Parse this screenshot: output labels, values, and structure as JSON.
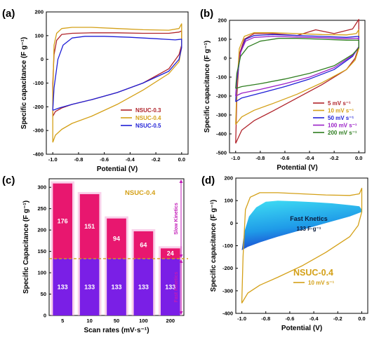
{
  "colors": {
    "dark_red": "#b0232a",
    "gold": "#d4a017",
    "blue": "#1f1fd6",
    "purple": "#9a1fc7",
    "green": "#2e7d1f",
    "pink_bar": "#e8176f",
    "violet_bar": "#7a1fe6",
    "kinetic_label": "#c21bb8",
    "fill_cyan": "#38d8f0",
    "fill_blue": "#1a5ad8"
  },
  "chart_data": [
    {
      "panel": "(a)",
      "type": "line",
      "xlabel": "Potential (V)",
      "ylabel": "Specific capacitance (F g⁻¹)",
      "xlim": [
        -1.05,
        0.05
      ],
      "ylim": [
        -400,
        200
      ],
      "xticks": [
        "-1.0",
        "-0.8",
        "-0.6",
        "-0.4",
        "-0.2",
        "0.0"
      ],
      "xtick_values": [
        -1.0,
        -0.8,
        -0.6,
        -0.4,
        -0.2,
        0.0
      ],
      "yticks": [
        "-400",
        "-300",
        "-200",
        "-100",
        "0",
        "100",
        "200"
      ],
      "ytick_values": [
        -400,
        -300,
        -200,
        -100,
        0,
        100,
        200
      ],
      "legend_position": "lower-right",
      "series": [
        {
          "name": "NSUC-0.3",
          "color": "#b0232a",
          "x": [
            -1.0,
            -1.0,
            -0.99,
            -0.97,
            -0.93,
            -0.85,
            -0.7,
            -0.5,
            -0.3,
            -0.1,
            -0.02,
            0.0,
            0.0,
            -0.02,
            -0.1,
            -0.3,
            -0.5,
            -0.7,
            -0.85,
            -0.93,
            -0.98,
            -1.0
          ],
          "y": [
            -240,
            -100,
            20,
            80,
            105,
            110,
            112,
            112,
            110,
            110,
            115,
            120,
            60,
            20,
            -40,
            -100,
            -140,
            -170,
            -190,
            -205,
            -220,
            -240
          ]
        },
        {
          "name": "NSUC-0.4",
          "color": "#d4a017",
          "x": [
            -1.0,
            -1.0,
            -0.99,
            -0.97,
            -0.93,
            -0.85,
            -0.7,
            -0.5,
            -0.3,
            -0.1,
            -0.02,
            0.0,
            0.0,
            -0.02,
            -0.1,
            -0.3,
            -0.5,
            -0.7,
            -0.85,
            -0.93,
            -0.98,
            -1.0
          ],
          "y": [
            -350,
            -150,
            60,
            110,
            130,
            135,
            135,
            130,
            125,
            123,
            130,
            150,
            50,
            -10,
            -60,
            -130,
            -190,
            -240,
            -270,
            -295,
            -320,
            -350
          ]
        },
        {
          "name": "NSUC-0.5",
          "color": "#1f1fd6",
          "x": [
            -1.0,
            -0.99,
            -0.96,
            -0.92,
            -0.85,
            -0.75,
            -0.6,
            -0.4,
            -0.2,
            -0.05,
            0.0,
            0.0,
            -0.02,
            -0.1,
            -0.3,
            -0.5,
            -0.7,
            -0.85,
            -0.95,
            -1.0
          ],
          "y": [
            -215,
            -120,
            0,
            60,
            90,
            97,
            97,
            93,
            87,
            82,
            85,
            50,
            0,
            -50,
            -100,
            -140,
            -170,
            -190,
            -205,
            -215
          ]
        }
      ]
    },
    {
      "panel": "(b)",
      "type": "line",
      "xlabel": "Potential (V)",
      "ylabel": "Specific capacitance (F g⁻¹)",
      "xlim": [
        -1.05,
        0.05
      ],
      "ylim": [
        -500,
        200
      ],
      "xticks": [
        "-1.0",
        "-0.8",
        "-0.6",
        "-0.4",
        "-0.2",
        "0.0"
      ],
      "xtick_values": [
        -1.0,
        -0.8,
        -0.6,
        -0.4,
        -0.2,
        0.0
      ],
      "yticks": [
        "-500",
        "-400",
        "-300",
        "-200",
        "-100",
        "0",
        "100",
        "200"
      ],
      "ytick_values": [
        -500,
        -400,
        -300,
        -200,
        -100,
        0,
        100,
        200
      ],
      "legend_position": "lower-right",
      "series": [
        {
          "name": "5 mV s⁻¹",
          "color": "#b0232a",
          "x": [
            -1.0,
            -0.99,
            -0.97,
            -0.93,
            -0.85,
            -0.7,
            -0.5,
            -0.35,
            -0.2,
            -0.05,
            0.0,
            0.0,
            -0.03,
            -0.1,
            -0.3,
            -0.5,
            -0.7,
            -0.85,
            -0.95,
            -1.0
          ],
          "y": [
            -450,
            -200,
            20,
            100,
            130,
            130,
            120,
            150,
            130,
            155,
            205,
            60,
            0,
            -60,
            -140,
            -210,
            -280,
            -330,
            -380,
            -450
          ]
        },
        {
          "name": "10 mV s⁻¹",
          "color": "#d4a017",
          "x": [
            -1.0,
            -0.99,
            -0.97,
            -0.93,
            -0.85,
            -0.7,
            -0.5,
            -0.3,
            -0.1,
            -0.02,
            0.0,
            0.0,
            -0.03,
            -0.1,
            -0.3,
            -0.5,
            -0.7,
            -0.85,
            -0.95,
            -1.0
          ],
          "y": [
            -350,
            -150,
            50,
            115,
            135,
            135,
            130,
            125,
            123,
            130,
            150,
            50,
            -10,
            -60,
            -130,
            -190,
            -240,
            -275,
            -310,
            -350
          ]
        },
        {
          "name": "50 mV s⁻¹",
          "color": "#1f1fd6",
          "x": [
            -1.0,
            -0.99,
            -0.96,
            -0.92,
            -0.85,
            -0.7,
            -0.5,
            -0.3,
            -0.1,
            0.0,
            0.0,
            -0.05,
            -0.2,
            -0.4,
            -0.6,
            -0.8,
            -0.95,
            -1.0
          ],
          "y": [
            -230,
            -120,
            30,
            100,
            120,
            125,
            120,
            115,
            110,
            115,
            60,
            10,
            -60,
            -110,
            -150,
            -185,
            -210,
            -230
          ]
        },
        {
          "name": "100 mV s⁻¹",
          "color": "#9a1fc7",
          "x": [
            -1.0,
            -0.99,
            -0.96,
            -0.92,
            -0.85,
            -0.7,
            -0.5,
            -0.3,
            -0.1,
            0.0,
            0.0,
            -0.05,
            -0.2,
            -0.4,
            -0.6,
            -0.8,
            -0.95,
            -1.0
          ],
          "y": [
            -200,
            -100,
            30,
            90,
            110,
            115,
            112,
            108,
            103,
            105,
            60,
            15,
            -50,
            -100,
            -135,
            -165,
            -185,
            -200
          ]
        },
        {
          "name": "200 mV s⁻¹",
          "color": "#2e7d1f",
          "x": [
            -1.0,
            -0.99,
            -0.96,
            -0.9,
            -0.8,
            -0.65,
            -0.5,
            -0.3,
            -0.1,
            0.0,
            0.0,
            -0.05,
            -0.2,
            -0.4,
            -0.6,
            -0.8,
            -0.95,
            -1.0
          ],
          "y": [
            -160,
            -80,
            10,
            60,
            90,
            105,
            105,
            100,
            95,
            95,
            55,
            20,
            -40,
            -80,
            -110,
            -135,
            -150,
            -160
          ]
        }
      ]
    },
    {
      "panel": "(c)",
      "type": "bar",
      "xlabel": "Scan rates (mV·s⁻¹)",
      "ylabel": "Specific Capacitance (F g⁻¹)",
      "categories": [
        "5",
        "10",
        "50",
        "100",
        "200"
      ],
      "ylim": [
        0,
        320
      ],
      "yticks": [
        "0",
        "50",
        "100",
        "150",
        "200",
        "250",
        "300"
      ],
      "ytick_values": [
        0,
        50,
        100,
        150,
        200,
        250,
        300
      ],
      "reference_line": 133,
      "series": [
        {
          "name": "Fast Kinetics",
          "color": "#7a1fe6",
          "values": [
            133,
            133,
            133,
            133,
            133
          ]
        },
        {
          "name": "Slow Kinetics",
          "color": "#e8176f",
          "values": [
            176,
            151,
            94,
            64,
            24
          ]
        }
      ],
      "annotation": "NSUC-0.4",
      "region_labels": [
        "Slow Kinetics",
        "Fast Kinetics"
      ]
    },
    {
      "panel": "(d)",
      "type": "line",
      "xlabel": "Potential (V)",
      "ylabel": "Specific capacitance (F g⁻¹)",
      "xlim": [
        -1.05,
        0.05
      ],
      "ylim": [
        -400,
        200
      ],
      "xticks": [
        "-1.0",
        "-0.8",
        "-0.6",
        "-0.4",
        "-0.2",
        "0.0"
      ],
      "xtick_values": [
        -1.0,
        -0.8,
        -0.6,
        -0.4,
        -0.2,
        0.0
      ],
      "yticks": [
        "-400",
        "-300",
        "-200",
        "-100",
        "0",
        "100",
        "200"
      ],
      "ytick_values": [
        -400,
        -300,
        -200,
        -100,
        0,
        100,
        200
      ],
      "series": [
        {
          "name": "10 mV s⁻¹",
          "color": "#d4a017",
          "x": [
            -1.0,
            -0.99,
            -0.97,
            -0.93,
            -0.85,
            -0.7,
            -0.5,
            -0.3,
            -0.1,
            -0.02,
            0.0,
            0.0,
            -0.03,
            -0.1,
            -0.3,
            -0.5,
            -0.7,
            -0.85,
            -0.95,
            -1.0
          ],
          "y": [
            -355,
            -150,
            60,
            115,
            135,
            135,
            130,
            125,
            123,
            130,
            155,
            50,
            -10,
            -60,
            -130,
            -190,
            -240,
            -275,
            -310,
            -355
          ]
        }
      ],
      "fill_region": {
        "x": [
          -1.0,
          -0.98,
          -0.94,
          -0.88,
          -0.8,
          -0.7,
          -0.55,
          -0.4,
          -0.25,
          -0.1,
          -0.02,
          0.0,
          0.0,
          -0.1,
          -0.3,
          -0.5,
          -0.7,
          -0.85,
          -0.95,
          -1.0
        ],
        "y": [
          -120,
          -40,
          30,
          70,
          95,
          100,
          97,
          93,
          88,
          80,
          75,
          60,
          50,
          30,
          0,
          -30,
          -60,
          -85,
          -105,
          -120
        ]
      },
      "fill_text": "Fast Knetics",
      "fill_value": "133 F·g⁻¹",
      "annotation": "NSUC-0.4",
      "legend_label": "10 mV s⁻¹"
    }
  ]
}
